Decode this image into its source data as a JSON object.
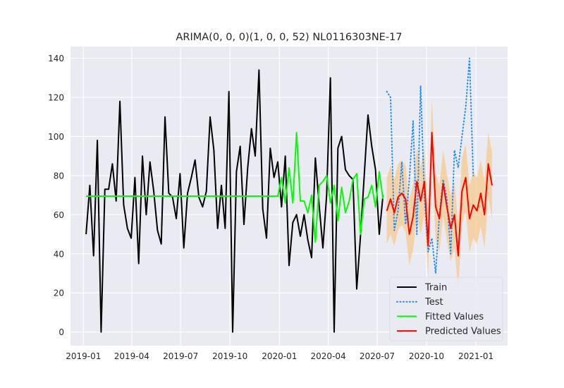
{
  "chart_data": {
    "type": "line",
    "title": "ARIMA(0, 0, 0)(1, 0, 0, 52) NL0116303NE-17",
    "xlabel": "",
    "ylabel": "",
    "x_range": [
      "2018-12-08",
      "2021-03-01"
    ],
    "y_range": [
      -7,
      146
    ],
    "x_ticks": [
      {
        "date": "2019-01-01",
        "label": "2019-01"
      },
      {
        "date": "2019-04-01",
        "label": "2019-04"
      },
      {
        "date": "2019-07-01",
        "label": "2019-07"
      },
      {
        "date": "2019-10-01",
        "label": "2019-10"
      },
      {
        "date": "2020-01-01",
        "label": "2020-01"
      },
      {
        "date": "2020-04-01",
        "label": "2020-04"
      },
      {
        "date": "2020-07-01",
        "label": "2020-07"
      },
      {
        "date": "2020-10-01",
        "label": "2020-10"
      },
      {
        "date": "2021-01-01",
        "label": "2021-01"
      }
    ],
    "y_ticks": [
      0,
      20,
      40,
      60,
      80,
      100,
      120,
      140
    ],
    "grid": true,
    "legend_position": "lower-right",
    "series": [
      {
        "name": "Train",
        "color": "#000000",
        "style": "solid",
        "x": [
          "2019-01-06",
          "2019-01-13",
          "2019-01-20",
          "2019-01-27",
          "2019-02-03",
          "2019-02-10",
          "2019-02-17",
          "2019-02-24",
          "2019-03-03",
          "2019-03-10",
          "2019-03-17",
          "2019-03-24",
          "2019-03-31",
          "2019-04-07",
          "2019-04-14",
          "2019-04-21",
          "2019-04-28",
          "2019-05-05",
          "2019-05-12",
          "2019-05-19",
          "2019-05-26",
          "2019-06-02",
          "2019-06-09",
          "2019-06-16",
          "2019-06-23",
          "2019-06-30",
          "2019-07-07",
          "2019-07-14",
          "2019-07-21",
          "2019-07-28",
          "2019-08-04",
          "2019-08-11",
          "2019-08-18",
          "2019-08-25",
          "2019-09-01",
          "2019-09-08",
          "2019-09-15",
          "2019-09-22",
          "2019-09-29",
          "2019-10-06",
          "2019-10-13",
          "2019-10-20",
          "2019-10-27",
          "2019-11-03",
          "2019-11-10",
          "2019-11-17",
          "2019-11-24",
          "2019-12-01",
          "2019-12-08",
          "2019-12-15",
          "2019-12-22",
          "2019-12-29",
          "2020-01-05",
          "2020-01-12",
          "2020-01-19",
          "2020-01-26",
          "2020-02-02",
          "2020-02-09",
          "2020-02-16",
          "2020-02-23",
          "2020-03-01",
          "2020-03-08",
          "2020-03-15",
          "2020-03-22",
          "2020-03-29",
          "2020-04-05",
          "2020-04-12",
          "2020-04-19",
          "2020-04-26",
          "2020-05-03",
          "2020-05-10",
          "2020-05-17",
          "2020-05-24",
          "2020-05-31",
          "2020-06-07",
          "2020-06-14",
          "2020-06-21",
          "2020-06-28",
          "2020-07-05",
          "2020-07-12"
        ],
        "values": [
          50,
          75,
          39,
          98,
          0,
          73,
          73,
          86,
          67,
          118,
          65,
          53,
          48,
          79,
          35,
          90,
          60,
          87,
          72,
          52,
          45,
          110,
          71,
          69,
          58,
          81,
          43,
          71,
          79,
          88,
          69,
          64,
          72,
          110,
          93,
          53,
          75,
          53,
          123,
          0,
          82,
          95,
          55,
          84,
          104,
          90,
          134,
          63,
          48,
          94,
          79,
          87,
          64,
          90,
          34,
          56,
          60,
          49,
          60,
          47,
          38,
          89,
          65,
          43,
          70,
          130,
          0,
          94,
          100,
          83,
          80,
          78,
          22,
          49,
          80,
          111,
          95,
          83,
          50,
          70
        ]
      },
      {
        "name": "Test",
        "color": "#1f8ef1",
        "style": "dotted",
        "x": [
          "2020-07-19",
          "2020-07-26",
          "2020-08-02",
          "2020-08-09",
          "2020-08-16",
          "2020-08-23",
          "2020-08-30",
          "2020-09-06",
          "2020-09-13",
          "2020-09-20",
          "2020-09-27",
          "2020-10-04",
          "2020-10-11",
          "2020-10-18",
          "2020-10-25",
          "2020-11-01",
          "2020-11-08",
          "2020-11-15",
          "2020-11-22",
          "2020-11-29",
          "2020-12-06",
          "2020-12-13",
          "2020-12-20",
          "2020-12-27"
        ],
        "values": [
          123,
          120,
          52,
          62,
          87,
          55,
          78,
          108,
          50,
          126,
          70,
          41,
          48,
          30,
          60,
          78,
          68,
          40,
          93,
          84,
          100,
          115,
          140,
          80
        ]
      },
      {
        "name": "Fitted Values",
        "color": "#00ff00",
        "style": "solid",
        "x": [
          "2019-01-06",
          "2019-12-29",
          "2020-01-05",
          "2020-01-12",
          "2020-01-19",
          "2020-01-26",
          "2020-02-02",
          "2020-02-09",
          "2020-02-16",
          "2020-02-23",
          "2020-03-01",
          "2020-03-08",
          "2020-03-15",
          "2020-03-22",
          "2020-03-29",
          "2020-04-05",
          "2020-04-12",
          "2020-04-19",
          "2020-04-26",
          "2020-05-03",
          "2020-05-10",
          "2020-05-17",
          "2020-05-24",
          "2020-05-31",
          "2020-06-07",
          "2020-06-14",
          "2020-06-21",
          "2020-06-28",
          "2020-07-05",
          "2020-07-12"
        ],
        "values": [
          69.5,
          69.5,
          79,
          66,
          84,
          66,
          102,
          67,
          67,
          61,
          70,
          46,
          75,
          77,
          80,
          66,
          75,
          57,
          74,
          61,
          67,
          78,
          81,
          50,
          68,
          69,
          75,
          64,
          82,
          68
        ]
      },
      {
        "name": "Predicted Values",
        "color": "#ff0000",
        "style": "solid",
        "x": [
          "2020-07-19",
          "2020-07-26",
          "2020-08-02",
          "2020-08-09",
          "2020-08-16",
          "2020-08-23",
          "2020-08-30",
          "2020-09-06",
          "2020-09-13",
          "2020-09-20",
          "2020-09-27",
          "2020-10-04",
          "2020-10-11",
          "2020-10-18",
          "2020-10-25",
          "2020-11-01",
          "2020-11-08",
          "2020-11-15",
          "2020-11-22",
          "2020-11-29",
          "2020-12-06",
          "2020-12-13",
          "2020-12-20",
          "2020-12-27",
          "2021-01-03",
          "2021-01-10",
          "2021-01-17",
          "2021-01-24",
          "2021-01-31"
        ],
        "values": [
          62,
          68,
          61,
          69,
          71,
          68,
          50,
          59,
          77,
          67,
          77,
          44,
          102,
          64,
          58,
          76,
          64,
          53,
          60,
          39,
          72,
          79,
          58,
          65,
          62,
          71,
          60,
          86,
          75
        ]
      }
    ],
    "confidence_band": {
      "color": "#f6c98e",
      "x": [
        "2020-07-19",
        "2020-07-26",
        "2020-08-02",
        "2020-08-09",
        "2020-08-16",
        "2020-08-23",
        "2020-08-30",
        "2020-09-06",
        "2020-09-13",
        "2020-09-20",
        "2020-09-27",
        "2020-10-04",
        "2020-10-11",
        "2020-10-18",
        "2020-10-25",
        "2020-11-01",
        "2020-11-08",
        "2020-11-15",
        "2020-11-22",
        "2020-11-29",
        "2020-12-06",
        "2020-12-13",
        "2020-12-20",
        "2020-12-27",
        "2021-01-03",
        "2021-01-10",
        "2021-01-17",
        "2021-01-24",
        "2021-01-31"
      ],
      "lower": [
        45,
        50,
        44,
        52,
        55,
        51,
        34,
        42,
        60,
        50,
        60,
        28,
        86,
        47,
        41,
        59,
        47,
        36,
        43,
        22,
        55,
        62,
        41,
        48,
        45,
        54,
        43,
        69,
        58
      ],
      "upper": [
        79,
        85,
        78,
        86,
        88,
        85,
        67,
        76,
        94,
        84,
        94,
        61,
        119,
        81,
        75,
        93,
        81,
        70,
        77,
        56,
        89,
        96,
        75,
        82,
        79,
        88,
        77,
        102,
        92
      ]
    },
    "legend": [
      {
        "label": "Train",
        "color": "#000000",
        "style": "solid"
      },
      {
        "label": "Test",
        "color": "#1f8ef1",
        "style": "dotted"
      },
      {
        "label": "Fitted Values",
        "color": "#00ff00",
        "style": "solid"
      },
      {
        "label": "Predicted Values",
        "color": "#ff0000",
        "style": "solid"
      }
    ]
  }
}
